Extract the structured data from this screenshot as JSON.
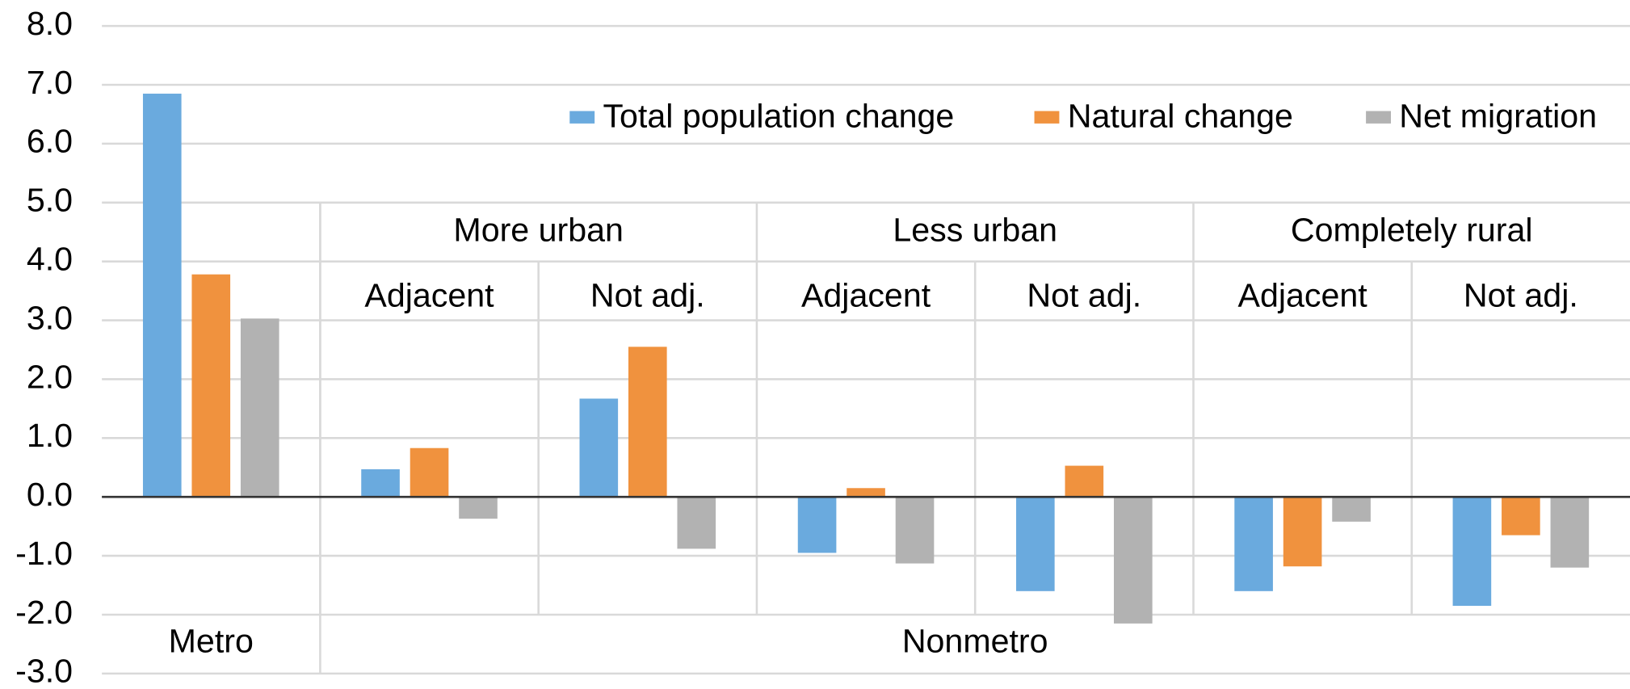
{
  "chart_data": {
    "type": "bar",
    "categories": [
      null,
      "Adjacent",
      "Not adj.",
      "Adjacent",
      "Not adj.",
      "Adjacent",
      "Not adj."
    ],
    "category_groups": [
      {
        "label": "More urban",
        "start": 1,
        "span": 2
      },
      {
        "label": "Less urban",
        "start": 3,
        "span": 2
      },
      {
        "label": "Completely rural",
        "start": 5,
        "span": 2
      }
    ],
    "top_groups": [
      {
        "label": "Metro",
        "start": 0,
        "span": 1
      },
      {
        "label": "Nonmetro",
        "start": 1,
        "span": 6
      }
    ],
    "series": [
      {
        "name": "Total population change",
        "color": "#6aaade",
        "values": [
          6.85,
          0.47,
          1.67,
          -0.95,
          -1.6,
          -1.6,
          -1.85
        ]
      },
      {
        "name": "Natural change",
        "color": "#f0923e",
        "values": [
          3.78,
          0.83,
          2.55,
          0.15,
          0.53,
          -1.18,
          -0.65
        ]
      },
      {
        "name": "Net migration",
        "color": "#b2b2b2",
        "values": [
          3.03,
          -0.37,
          -0.88,
          -1.13,
          -2.15,
          -0.42,
          -1.2
        ]
      }
    ],
    "ylim": [
      -3,
      8
    ],
    "yticks": [
      {
        "value": 8,
        "label": "8.0"
      },
      {
        "value": 7,
        "label": "7.0"
      },
      {
        "value": 6,
        "label": "6.0"
      },
      {
        "value": 5,
        "label": "5.0"
      },
      {
        "value": 4,
        "label": "4.0"
      },
      {
        "value": 3,
        "label": "3.0"
      },
      {
        "value": 2,
        "label": "2.0"
      },
      {
        "value": 1,
        "label": "1.0"
      },
      {
        "value": 0,
        "label": "0.0"
      },
      {
        "value": -1,
        "label": "-1.0"
      },
      {
        "value": -2,
        "label": "-2.0"
      },
      {
        "value": -3,
        "label": "-3.0"
      }
    ],
    "grid": true,
    "legend": "top-right"
  }
}
